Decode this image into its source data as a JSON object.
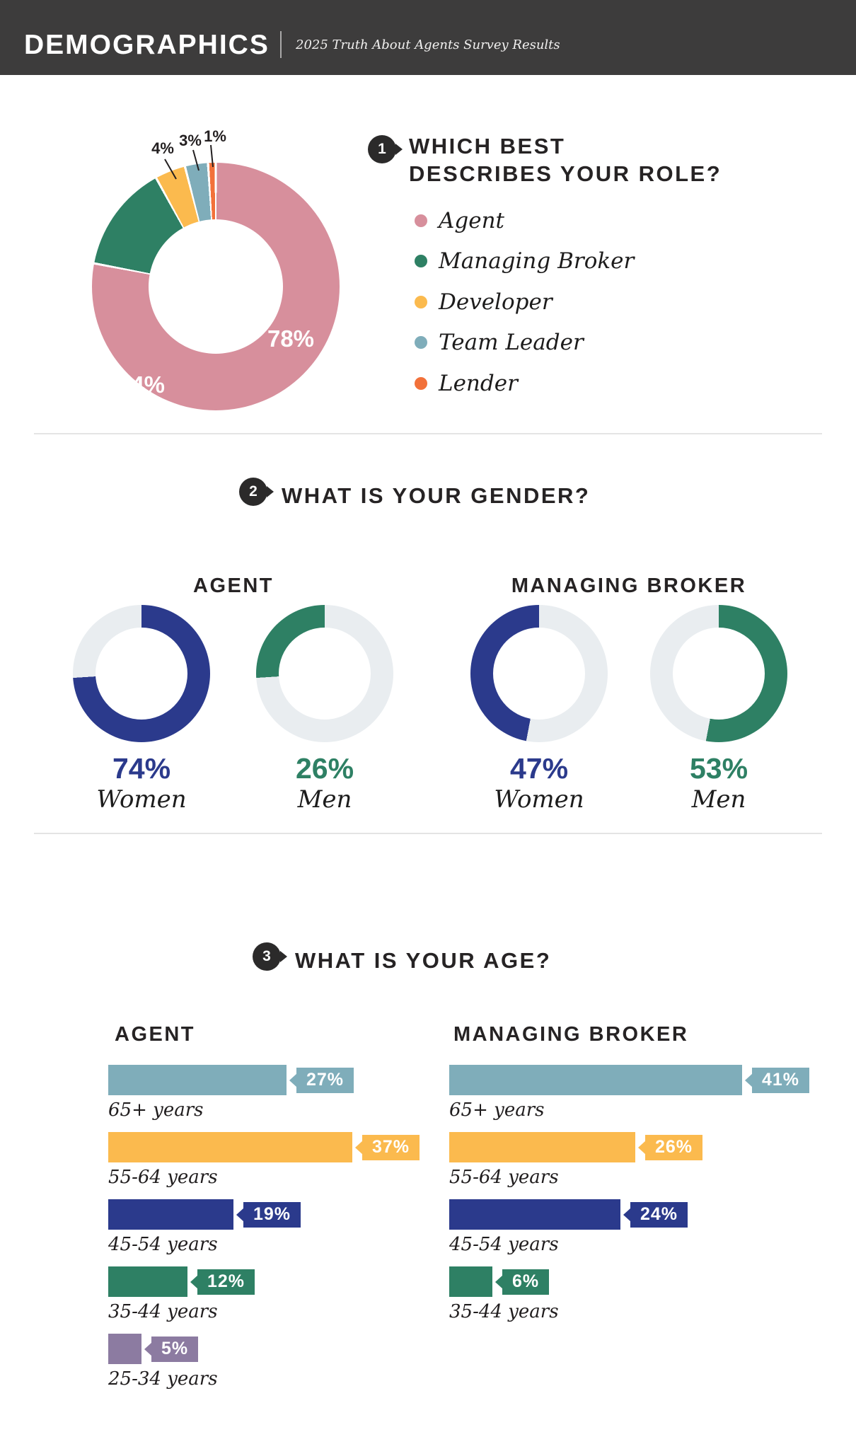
{
  "header": {
    "title": "DEMOGRAPHICS",
    "subtitle": "2025 Truth About Agents Survey Results"
  },
  "q1": {
    "number": "1",
    "title_lines": [
      "WHICH BEST",
      "DESCRIBES YOUR ROLE?"
    ],
    "segments": [
      {
        "label": "Agent",
        "value": 78,
        "value_label": "78%",
        "color": "#d78f9c"
      },
      {
        "label": "Managing Broker",
        "value": 14,
        "value_label": "14%",
        "color": "#2e8064"
      },
      {
        "label": "Developer",
        "value": 4,
        "value_label": "4%",
        "color": "#fbba4e"
      },
      {
        "label": "Team Leader",
        "value": 3,
        "value_label": "3%",
        "color": "#7fadba"
      },
      {
        "label": "Lender",
        "value": 1,
        "value_label": "1%",
        "color": "#f2713a"
      }
    ]
  },
  "q2": {
    "number": "2",
    "title": "WHAT IS YOUR GENDER?",
    "groups": [
      {
        "label": "AGENT"
      },
      {
        "label": "MANAGING BROKER"
      }
    ],
    "donuts": [
      {
        "group": "AGENT",
        "label": "Women",
        "value": 74,
        "value_label": "74%",
        "color": "#2b3a8c",
        "color_first": true
      },
      {
        "group": "AGENT",
        "label": "Men",
        "value": 26,
        "value_label": "26%",
        "color": "#2e8064",
        "color_first": false
      },
      {
        "group": "MANAGING BROKER",
        "label": "Women",
        "value": 47,
        "value_label": "47%",
        "color": "#2b3a8c",
        "color_first": false
      },
      {
        "group": "MANAGING BROKER",
        "label": "Men",
        "value": 53,
        "value_label": "53%",
        "color": "#2e8064",
        "color_first": true
      }
    ]
  },
  "q3": {
    "number": "3",
    "title": "WHAT IS YOUR AGE?",
    "agent": {
      "label": "AGENT",
      "rows": [
        {
          "label": "65+ years",
          "value": 27,
          "value_label": "27%",
          "color": "#7fadba"
        },
        {
          "label": "55-64 years",
          "value": 37,
          "value_label": "37%",
          "color": "#fbba4e"
        },
        {
          "label": "45-54 years",
          "value": 19,
          "value_label": "19%",
          "color": "#2b3a8c"
        },
        {
          "label": "35-44 years",
          "value": 12,
          "value_label": "12%",
          "color": "#2e8064"
        },
        {
          "label": "25-34 years",
          "value": 5,
          "value_label": "5%",
          "color": "#8c7ba1"
        }
      ]
    },
    "managing_broker": {
      "label": "MANAGING BROKER",
      "rows": [
        {
          "label": "65+ years",
          "value": 41,
          "value_label": "41%",
          "color": "#7fadba"
        },
        {
          "label": "55-64 years",
          "value": 26,
          "value_label": "26%",
          "color": "#fbba4e"
        },
        {
          "label": "45-54 years",
          "value": 24,
          "value_label": "24%",
          "color": "#2b3a8c"
        },
        {
          "label": "35-44 years",
          "value": 6,
          "value_label": "6%",
          "color": "#2e8064"
        }
      ]
    }
  },
  "chart_data": [
    {
      "type": "pie",
      "style": "donut",
      "title": "WHICH BEST DESCRIBES YOUR ROLE?",
      "labels": [
        "Agent",
        "Managing Broker",
        "Developer",
        "Team Leader",
        "Lender"
      ],
      "values": [
        78,
        14,
        4,
        3,
        1
      ],
      "unit": "%",
      "colors": [
        "#d78f9c",
        "#2e8064",
        "#fbba4e",
        "#7fadba",
        "#f2713a"
      ],
      "legend_position": "right"
    },
    {
      "type": "pie",
      "style": "donut-gauges",
      "title": "WHAT IS YOUR GENDER?",
      "subcharts": [
        {
          "group": "Agent",
          "labels": [
            "Women",
            "Men"
          ],
          "values": [
            74,
            26
          ]
        },
        {
          "group": "Managing Broker",
          "labels": [
            "Women",
            "Men"
          ],
          "values": [
            47,
            53
          ]
        }
      ],
      "unit": "%"
    },
    {
      "type": "bar",
      "orientation": "horizontal",
      "title": "WHAT IS YOUR AGE?",
      "categories": [
        "65+ years",
        "55-64 years",
        "45-54 years",
        "35-44 years",
        "25-34 years"
      ],
      "series": [
        {
          "name": "Agent",
          "values": [
            27,
            37,
            19,
            12,
            5
          ]
        },
        {
          "name": "Managing Broker",
          "values": [
            41,
            26,
            24,
            6,
            null
          ]
        }
      ],
      "unit": "%",
      "grid": false,
      "legend_position": "none"
    }
  ]
}
